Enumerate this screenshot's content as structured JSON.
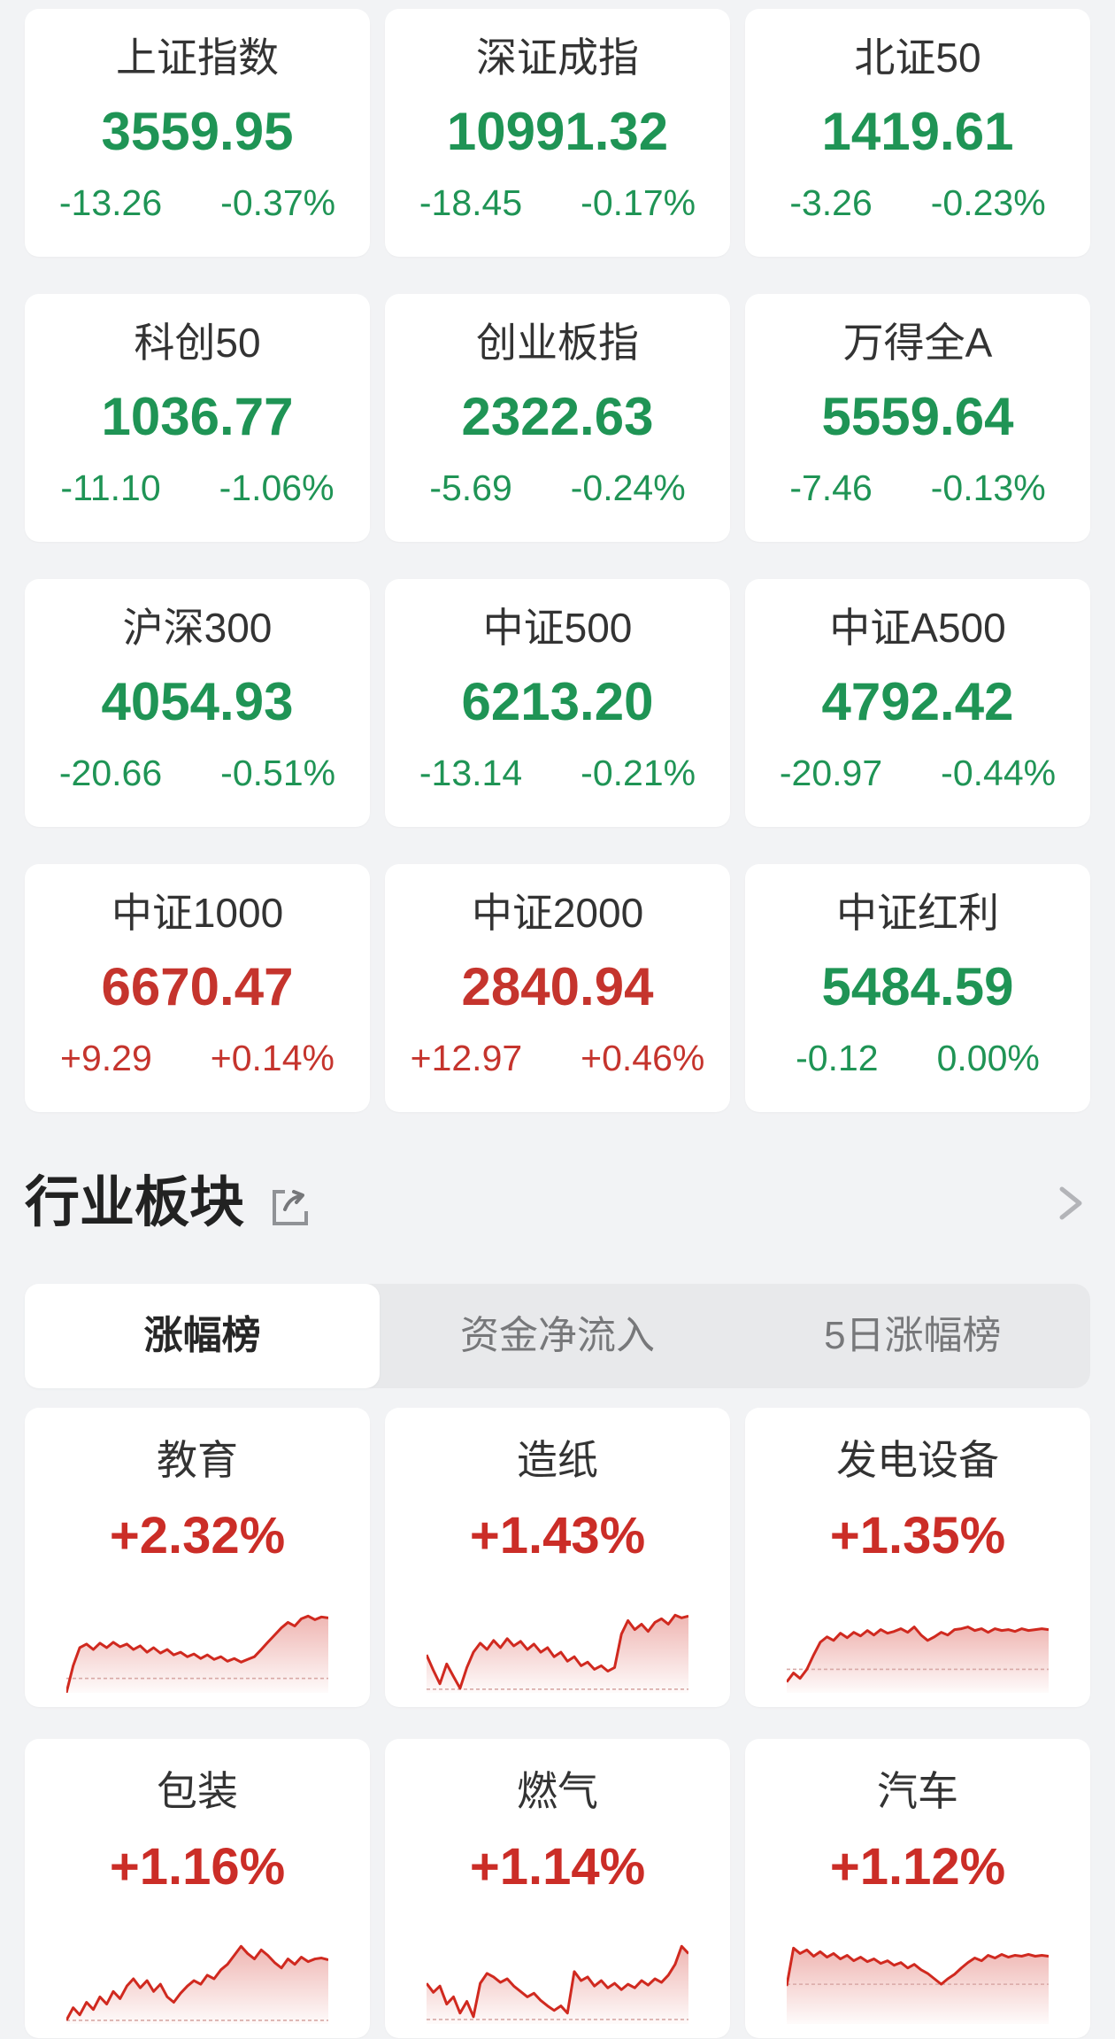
{
  "colors": {
    "up_red": "#c5342d",
    "down_green": "#1f9455",
    "sector_red": "#cb2d27",
    "spark_line": "#d0291f",
    "spark_fill_top": "rgba(208,41,31,0.34)",
    "spark_fill_bottom": "rgba(208,41,31,0.02)",
    "spark_baseline": "#d8a9a6"
  },
  "indices": {
    "cards": [
      {
        "name": "上证指数",
        "value": "3559.95",
        "change": "-13.26",
        "change_pct": "-0.37%",
        "dir": "down"
      },
      {
        "name": "深证成指",
        "value": "10991.32",
        "change": "-18.45",
        "change_pct": "-0.17%",
        "dir": "down"
      },
      {
        "name": "北证50",
        "value": "1419.61",
        "change": "-3.26",
        "change_pct": "-0.23%",
        "dir": "down"
      },
      {
        "name": "科创50",
        "value": "1036.77",
        "change": "-11.10",
        "change_pct": "-1.06%",
        "dir": "down"
      },
      {
        "name": "创业板指",
        "value": "2322.63",
        "change": "-5.69",
        "change_pct": "-0.24%",
        "dir": "down"
      },
      {
        "name": "万得全A",
        "value": "5559.64",
        "change": "-7.46",
        "change_pct": "-0.13%",
        "dir": "down"
      },
      {
        "name": "沪深300",
        "value": "4054.93",
        "change": "-20.66",
        "change_pct": "-0.51%",
        "dir": "down"
      },
      {
        "name": "中证500",
        "value": "6213.20",
        "change": "-13.14",
        "change_pct": "-0.21%",
        "dir": "down"
      },
      {
        "name": "中证A500",
        "value": "4792.42",
        "change": "-20.97",
        "change_pct": "-0.44%",
        "dir": "down"
      },
      {
        "name": "中证1000",
        "value": "6670.47",
        "change": "+9.29",
        "change_pct": "+0.14%",
        "dir": "up"
      },
      {
        "name": "中证2000",
        "value": "2840.94",
        "change": "+12.97",
        "change_pct": "+0.46%",
        "dir": "up"
      },
      {
        "name": "中证红利",
        "value": "5484.59",
        "change": "-0.12",
        "change_pct": "0.00%",
        "dir": "down"
      }
    ]
  },
  "sectors": {
    "title": "行业板块",
    "tabs": [
      {
        "label": "涨幅榜",
        "active": true
      },
      {
        "label": "资金净流入",
        "active": false
      },
      {
        "label": "5日涨幅榜",
        "active": false
      }
    ],
    "cards": [
      {
        "name": "教育",
        "change_pct": "+2.32%",
        "spark": {
          "baseline": 84,
          "points": [
            100,
            70,
            50,
            46,
            52,
            45,
            50,
            44,
            49,
            46,
            52,
            48,
            55,
            50,
            56,
            52,
            58,
            55,
            60,
            57,
            62,
            58,
            63,
            60,
            65,
            62,
            66,
            63,
            60,
            52,
            44,
            36,
            28,
            22,
            26,
            18,
            15,
            19,
            16,
            17
          ]
        }
      },
      {
        "name": "造纸",
        "change_pct": "+1.43%",
        "spark": {
          "baseline": 96,
          "points": [
            58,
            75,
            90,
            68,
            82,
            95,
            72,
            55,
            45,
            52,
            42,
            50,
            40,
            48,
            43,
            52,
            46,
            55,
            50,
            60,
            55,
            65,
            60,
            70,
            66,
            74,
            70,
            76,
            72,
            35,
            20,
            30,
            24,
            32,
            22,
            18,
            24,
            14,
            17,
            15
          ]
        }
      },
      {
        "name": "发电设备",
        "change_pct": "+1.35%",
        "spark": {
          "baseline": 74,
          "points": [
            88,
            78,
            84,
            74,
            58,
            44,
            38,
            42,
            34,
            39,
            33,
            37,
            31,
            36,
            30,
            34,
            32,
            29,
            33,
            27,
            36,
            42,
            38,
            33,
            36,
            30,
            29,
            27,
            31,
            29,
            33,
            29,
            31,
            30,
            32,
            29,
            31,
            30,
            29,
            30
          ]
        }
      },
      {
        "name": "包装",
        "change_pct": "+1.16%",
        "spark": {
          "baseline": 96,
          "points": [
            96,
            82,
            90,
            76,
            84,
            70,
            78,
            64,
            72,
            58,
            50,
            60,
            52,
            64,
            56,
            70,
            76,
            66,
            58,
            52,
            56,
            46,
            50,
            40,
            34,
            24,
            14,
            22,
            28,
            18,
            24,
            32,
            38,
            28,
            34,
            26,
            31,
            28,
            27,
            29
          ]
        }
      },
      {
        "name": "燃气",
        "change_pct": "+1.14%",
        "spark": {
          "baseline": 95,
          "points": [
            55,
            65,
            58,
            78,
            70,
            88,
            75,
            92,
            55,
            44,
            48,
            54,
            50,
            58,
            64,
            70,
            66,
            74,
            80,
            85,
            80,
            88,
            42,
            52,
            48,
            58,
            52,
            60,
            55,
            62,
            56,
            60,
            52,
            57,
            50,
            54,
            46,
            34,
            14,
            22
          ]
        }
      },
      {
        "name": "汽车",
        "change_pct": "+1.12%",
        "spark": {
          "baseline": 56,
          "points": [
            58,
            16,
            22,
            18,
            25,
            20,
            26,
            22,
            28,
            24,
            30,
            26,
            31,
            28,
            33,
            30,
            35,
            32,
            38,
            34,
            40,
            44,
            50,
            56,
            50,
            45,
            38,
            32,
            27,
            30,
            24,
            27,
            23,
            26,
            24,
            25,
            23,
            25,
            24,
            25
          ]
        }
      }
    ]
  }
}
